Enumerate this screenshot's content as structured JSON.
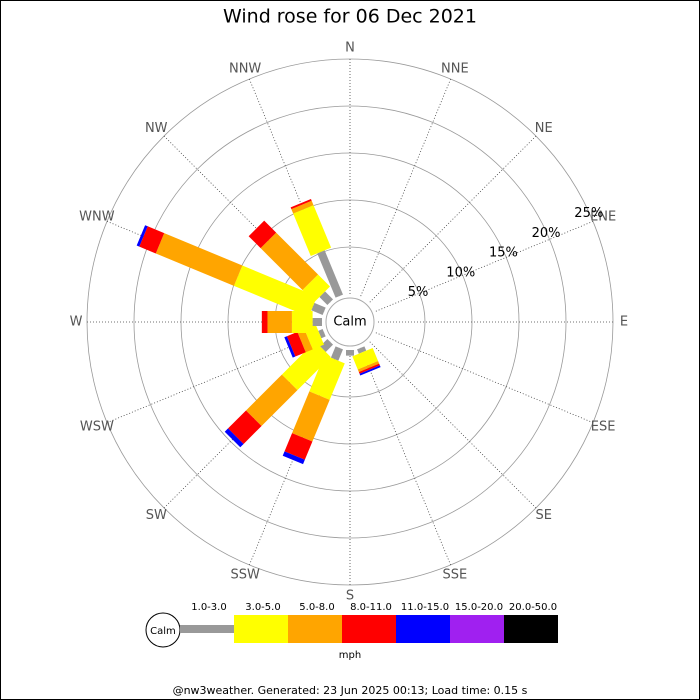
{
  "chart_data": {
    "type": "windrose",
    "title": "Wind rose for 06 Dec 2021",
    "categories": [
      "N",
      "NNE",
      "NE",
      "ENE",
      "E",
      "ESE",
      "SE",
      "SSE",
      "S",
      "SSW",
      "SW",
      "WSW",
      "W",
      "WNW",
      "NW",
      "NNW"
    ],
    "series": [
      {
        "name": "1.0-3.0",
        "color": "#999999",
        "values": [
          0,
          0,
          0,
          0,
          0,
          0,
          0,
          0.5,
          0.6,
          1.3,
          1.1,
          0.5,
          1.0,
          1.3,
          1.2,
          5.1
        ]
      },
      {
        "name": "3.0-5.0",
        "color": "#ffff00",
        "values": [
          0,
          0,
          0,
          0,
          0,
          0,
          0,
          1.5,
          0,
          4.2,
          5.0,
          1.3,
          2.2,
          8.6,
          1.8,
          4.9
        ]
      },
      {
        "name": "5.0-8.0",
        "color": "#ffa500",
        "values": [
          0,
          0,
          0,
          0,
          0,
          0,
          0,
          0.3,
          0,
          4.8,
          5.4,
          0.8,
          2.6,
          9.0,
          6.3,
          0.5
        ]
      },
      {
        "name": "8.0-11.0",
        "color": "#ff0000",
        "values": [
          0,
          0,
          0,
          0,
          0,
          0,
          0,
          0.2,
          0,
          2.1,
          2.7,
          1.2,
          0.6,
          1.9,
          1.8,
          0.2
        ]
      },
      {
        "name": "11.0-15.0",
        "color": "#0000ff",
        "values": [
          0,
          0,
          0,
          0,
          0,
          0,
          0,
          0.2,
          0,
          0.5,
          0.5,
          0.3,
          0,
          0.3,
          0,
          0
        ]
      },
      {
        "name": "15.0-20.0",
        "color": "#a020f0",
        "values": [
          0,
          0,
          0,
          0,
          0,
          0,
          0,
          0,
          0,
          0,
          0,
          0,
          0,
          0,
          0,
          0
        ]
      },
      {
        "name": "20.0-50.0",
        "color": "#000000",
        "values": [
          0,
          0,
          0,
          0,
          0,
          0,
          0,
          0,
          0,
          0,
          0,
          0,
          0,
          0,
          0,
          0
        ]
      }
    ],
    "ylim": [
      0,
      25
    ],
    "yticks": [
      {
        "value": 5,
        "label": "5%"
      },
      {
        "value": 10,
        "label": "10%"
      },
      {
        "value": 15,
        "label": "15%"
      },
      {
        "value": 20,
        "label": "20%"
      },
      {
        "value": 25,
        "label": "25%"
      }
    ],
    "calm_label": "Calm",
    "unit": "mph",
    "footer": "@nw3weather. Generated: 23 Jun 2025 00:13; Load time: 0.15 s"
  }
}
